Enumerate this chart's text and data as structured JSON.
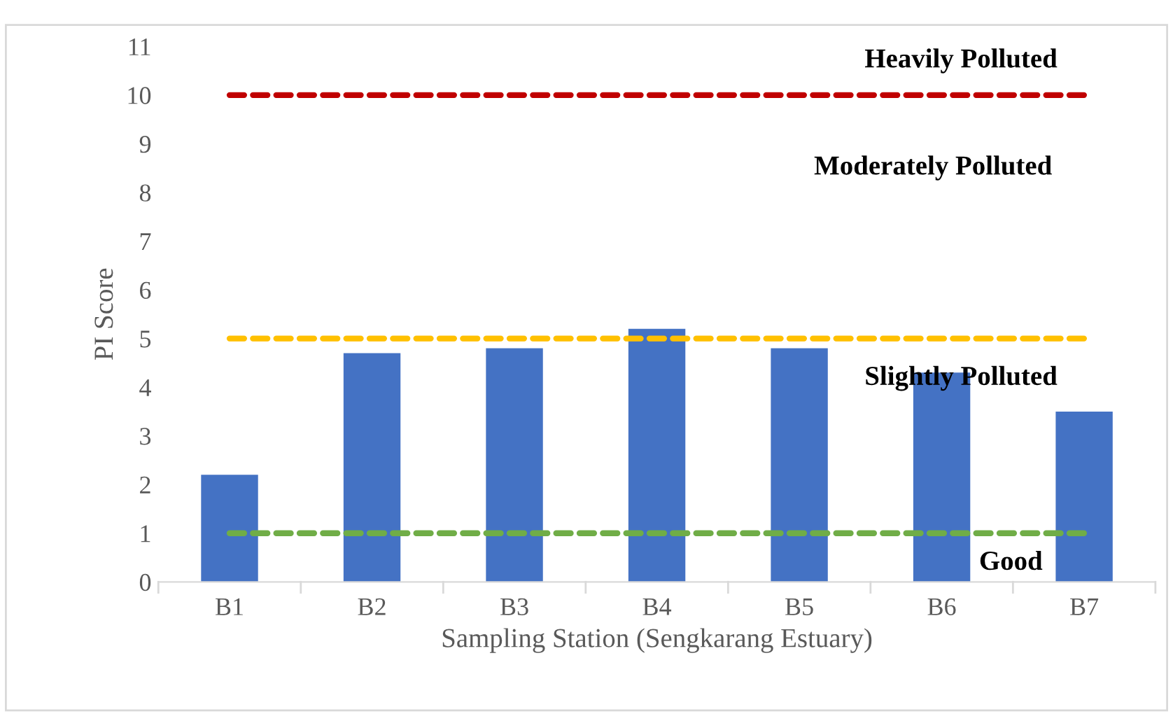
{
  "chart_data": {
    "type": "bar",
    "xlabel": "Sampling Station (Sengkarang Estuary)",
    "ylabel": "PI Score",
    "categories": [
      "B1",
      "B2",
      "B3",
      "B4",
      "B5",
      "B6",
      "B7"
    ],
    "values": [
      2.2,
      4.7,
      4.8,
      5.2,
      4.8,
      4.3,
      3.5
    ],
    "color": "#4472c4",
    "ylim": [
      0,
      11
    ],
    "yticks": [
      0,
      1,
      2,
      3,
      4,
      5,
      6,
      7,
      8,
      9,
      10,
      11
    ],
    "grid": false,
    "ref_lines": [
      {
        "axis": "y",
        "value": 10,
        "color": "#c00000",
        "line_style": "dashed"
      },
      {
        "axis": "y",
        "value": 5,
        "color": "#ffc000",
        "line_style": "dashed"
      },
      {
        "axis": "y",
        "value": 1,
        "color": "#70ad47",
        "line_style": "dashed"
      }
    ],
    "annotations": [
      "Heavily Polluted",
      "Moderately Polluted",
      "Slightly Polluted",
      "Good"
    ]
  }
}
